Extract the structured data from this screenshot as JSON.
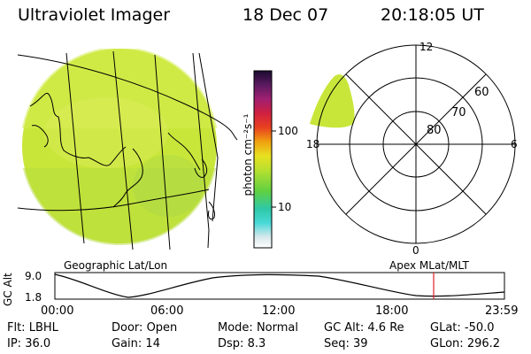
{
  "header": {
    "title": "Ultraviolet Imager",
    "date": "18 Dec 07",
    "time": "20:18:05 UT"
  },
  "colorbar": {
    "unit_label": "photon cm⁻²s⁻¹",
    "tick_100": "100",
    "tick_10": "10"
  },
  "polar": {
    "mlt_12": "12",
    "mlt_18": "18",
    "mlt_6": "6",
    "mlt_0": "0",
    "lat_60": "60",
    "lat_70": "70",
    "lat_80": "80"
  },
  "panels": {
    "left_caption": "Geographic Lat/Lon",
    "right_caption": "Apex MLat/MLT"
  },
  "altitude_plot": {
    "axis_label": "GC Alt",
    "y_max": "9.0",
    "y_min": "1.8",
    "times": [
      "00:00",
      "06:00",
      "12:00",
      "18:00",
      "23:59"
    ]
  },
  "status": {
    "row1": [
      {
        "key": "Flt:",
        "value": "LBHL"
      },
      {
        "key": "Door:",
        "value": "Open"
      },
      {
        "key": "Mode:",
        "value": "Normal"
      },
      {
        "key": "GC Alt:",
        "value": "4.6 Re"
      },
      {
        "key": "GLat:",
        "value": "-50.0"
      }
    ],
    "row2": [
      {
        "key": "IP:",
        "value": "36.0"
      },
      {
        "key": "Gain:",
        "value": "14"
      },
      {
        "key": "Dsp:",
        "value": "8.3"
      },
      {
        "key": "Seq:",
        "value": "39"
      },
      {
        "key": "GLon:",
        "value": "296.2"
      }
    ]
  },
  "colors": {
    "emission": "#c8e63a",
    "emission_light": "#d6ec4e",
    "cursor": "#e0202a"
  }
}
